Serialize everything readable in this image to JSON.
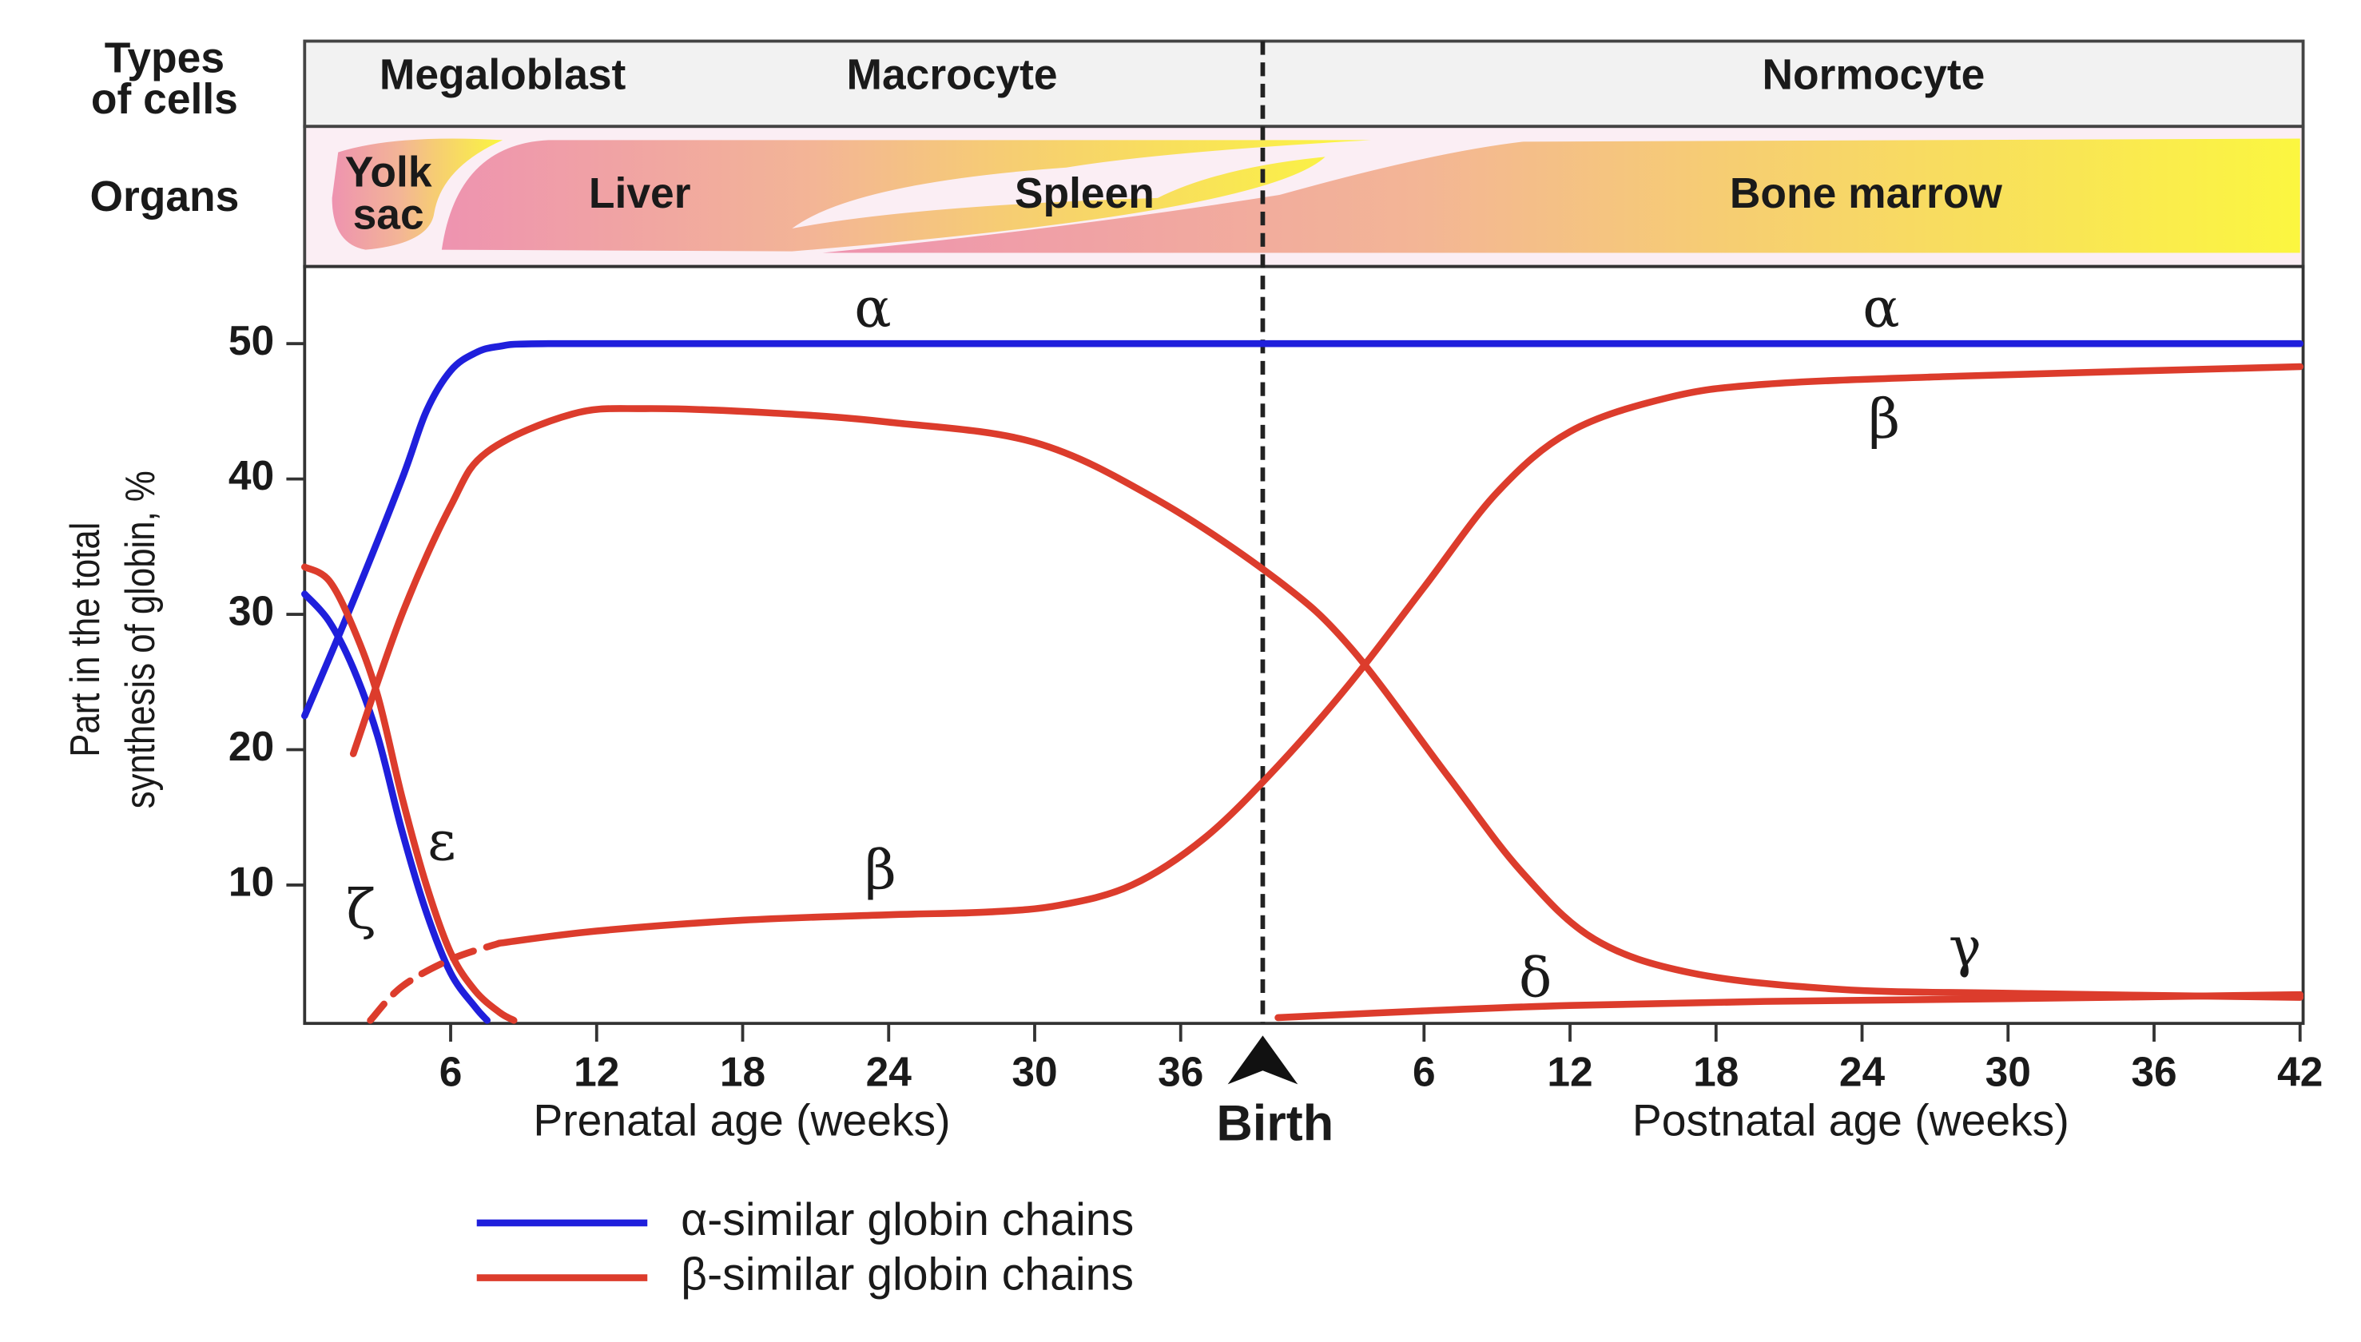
{
  "chart_data": {
    "type": "line",
    "cell_types": {
      "label": [
        "Types",
        "of cells"
      ],
      "items": [
        "Megaloblast",
        "Macrocyte",
        "Normocyte"
      ]
    },
    "organs": {
      "label": "Organs",
      "items": [
        [
          "Yolk",
          "sac"
        ],
        "Liver",
        "Spleen",
        "Bone marrow"
      ]
    },
    "y_label": [
      "Part in the total",
      "synthesis of globin, %"
    ],
    "x_labels": [
      "Prenatal age (weeks)",
      "Postnatal age (weeks)"
    ],
    "birth": {
      "text": "Birth",
      "x": 40
    },
    "xlim": [
      0,
      82
    ],
    "xticks": [
      6,
      12,
      18,
      24,
      30,
      36,
      {
        "value": 46,
        "label": "6"
      },
      {
        "value": 52,
        "label": "12"
      },
      {
        "value": 58,
        "label": "18"
      },
      {
        "value": 64,
        "label": "24"
      },
      {
        "value": 70,
        "label": "30"
      },
      {
        "value": 76,
        "label": "36"
      },
      {
        "value": 82,
        "label": "42"
      }
    ],
    "ylim": [
      0,
      55.7
    ],
    "yticks": [
      10,
      20,
      30,
      40,
      50
    ],
    "grid": false,
    "series": [
      {
        "name": "α",
        "color": "#1f1fdc",
        "x": [
          0,
          2,
          4,
          5,
          6,
          7,
          8,
          10,
          20,
          40,
          60,
          82
        ],
        "values": [
          22.5,
          31,
          40,
          45,
          48,
          49.3,
          49.8,
          50,
          50,
          50,
          50,
          50
        ]
      },
      {
        "name": "ζ",
        "color": "#1f1fdc",
        "x": [
          0,
          1,
          2,
          3,
          4,
          5,
          6,
          7,
          7.5
        ],
        "values": [
          31.5,
          29.5,
          26,
          21,
          14,
          8,
          3.5,
          1,
          0
        ]
      },
      {
        "name": "ε",
        "color": "#dc3c2c",
        "x": [
          0,
          1,
          2,
          3,
          4,
          5,
          6,
          7,
          8,
          8.6
        ],
        "values": [
          33.5,
          32.5,
          29,
          24,
          16.5,
          10,
          5,
          2.2,
          0.6,
          0
        ]
      },
      {
        "name": "γ",
        "color": "#dc3c2c",
        "x": [
          2,
          4,
          6,
          7.5,
          11,
          14,
          19,
          24,
          30,
          35,
          40,
          43,
          47,
          50,
          53,
          57,
          63,
          70,
          82
        ],
        "values": [
          19.7,
          30,
          38,
          42,
          44.8,
          45.2,
          44.9,
          44.2,
          42.7,
          38.5,
          32.5,
          27.5,
          18,
          11,
          6,
          3.5,
          2.3,
          2,
          1.7
        ]
      },
      {
        "name": "β",
        "color": "#dc3c2c",
        "x": [
          8,
          12,
          18,
          24,
          28,
          31,
          34,
          37,
          40,
          43,
          46,
          49,
          52,
          56,
          60,
          68,
          82
        ],
        "values": [
          5.7,
          6.6,
          7.4,
          7.8,
          8,
          8.5,
          10,
          13.5,
          18.8,
          25,
          32,
          39,
          43.5,
          46,
          47,
          47.6,
          48.3
        ]
      },
      {
        "color": "#dc3c2c",
        "dashed": true,
        "x": [
          2.7,
          4,
          6,
          8
        ],
        "values": [
          0,
          2.5,
          4.5,
          5.7
        ]
      },
      {
        "name": "δ",
        "color": "#dc3c2c",
        "x": [
          40,
          46,
          52,
          60,
          70,
          82
        ],
        "values": [
          0.2,
          0.7,
          1.1,
          1.4,
          1.6,
          1.9
        ]
      }
    ],
    "legend": [
      {
        "label": "α-similar globin chains",
        "color": "#1f1fdc"
      },
      {
        "label": "β-similar globin chains",
        "color": "#dc3c2c"
      }
    ]
  }
}
